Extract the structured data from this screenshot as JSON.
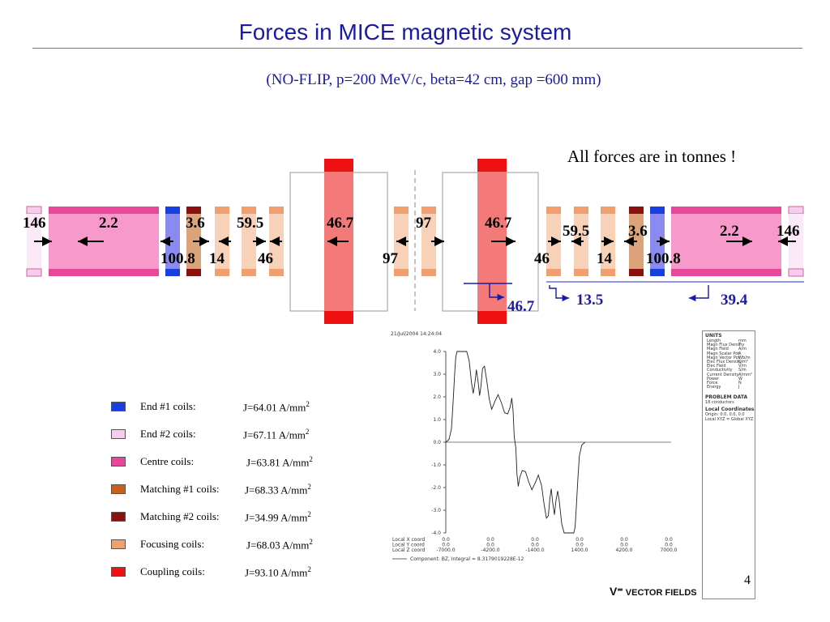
{
  "title": "Forces in MICE magnetic system",
  "subtitle": "(NO-FLIP, p=200 MeV/c, beta=42 cm, gap =600 mm)",
  "note": "All forces are in tonnes !",
  "colors": {
    "end1": "#1a3fe0",
    "end2": "#f6cdef",
    "centre": "#e8489a",
    "matching1": "#c8621a",
    "matching2": "#8b1010",
    "focusing": "#f0a070",
    "coupling": "#ee1111",
    "blue_text": "#1a1aa6"
  },
  "forces": {
    "f146_left": "146",
    "f2_2_left": "2.2",
    "f3_6_left": "3.6",
    "f59_5_left": "59.5",
    "f46_7_left": "46.7",
    "f97_top": "97",
    "f46_7_right": "46.7",
    "f59_5_right": "59.5",
    "f3_6_right": "3.6",
    "f2_2_right": "2.2",
    "f146_right": "146",
    "f100_8_left": "100.8",
    "f14_left": "14",
    "f46_left": "46",
    "f97_bottom": "97",
    "f46_right": "46",
    "f14_right": "14",
    "f100_8_right": "100.8",
    "net_46_7": "46.7",
    "net_13_5": "13.5",
    "net_39_4": "39.4"
  },
  "legend": [
    {
      "name": "End #1 coils:",
      "j": "J=64.01 A/mm",
      "sup": "2",
      "color_key": "end1"
    },
    {
      "name": "End #2 coils:",
      "j": "J=67.11 A/mm",
      "sup": "2",
      "color_key": "end2"
    },
    {
      "name": "Centre coils:",
      "j": "J=63.81 A/mm",
      "sup": "2",
      "color_key": "centre"
    },
    {
      "name": "Matching #1 coils:",
      "j": "J=68.33 A/mm",
      "sup": "2",
      "color_key": "matching1"
    },
    {
      "name": "Matching #2 coils:",
      "j": "J=34.99 A/mm",
      "sup": "2",
      "color_key": "matching2"
    },
    {
      "name": "Focusing coils:",
      "j": "J=68.03 A/mm",
      "sup": "2",
      "color_key": "focusing"
    },
    {
      "name": "Coupling coils:",
      "j": "J=93.10 A/mm",
      "sup": "2",
      "color_key": "coupling"
    }
  ],
  "plot": {
    "timestamp": "21/Jul/2004 14:24:04",
    "y_ticks": [
      "4.0",
      "3.0",
      "2.0",
      "1.0",
      "0.0",
      "-1.0",
      "-2.0",
      "-3.0",
      "-4.0"
    ],
    "x_rows": [
      {
        "label": "Local X coord",
        "values": [
          "0.0",
          "0.0",
          "0.0",
          "0.0",
          "0.0",
          "0.0"
        ]
      },
      {
        "label": "Local Y coord",
        "values": [
          "0.0",
          "0.0",
          "0.0",
          "0.0",
          "0.0",
          "0.0"
        ]
      },
      {
        "label": "Local Z coord",
        "values": [
          "-7000.0",
          "-4200.0",
          "-1400.0",
          "1400.0",
          "4200.0",
          "7000.0"
        ]
      }
    ],
    "component": "Component: BZ, Integral = 8.3179019228E-12",
    "units_title": "UNITS",
    "units": [
      [
        "Length",
        "mm"
      ],
      [
        "Magn Flux Density",
        "T"
      ],
      [
        "Magn Field",
        "A/m"
      ],
      [
        "Magn Scalar Pot",
        "A"
      ],
      [
        "Magn Vector Pot",
        "Wb/m"
      ],
      [
        "Elec Flux Density",
        "C/m²"
      ],
      [
        "Elec Field",
        "V/m"
      ],
      [
        "Conductivity",
        "S/m"
      ],
      [
        "Current Density",
        "A/mm²"
      ],
      [
        "Power",
        "W"
      ],
      [
        "Force",
        "N"
      ],
      [
        "Energy",
        "J"
      ]
    ],
    "problem_title": "PROBLEM DATA",
    "problem_text": "18 conductors",
    "local_title": "Local Coordinates",
    "local_lines": [
      "Origin: 0.0, 0.0, 0.0",
      "Local XYZ = Global XYZ"
    ],
    "field_curve": [
      [
        -7000,
        0
      ],
      [
        -6800,
        0.12
      ],
      [
        -6650,
        0.6
      ],
      [
        -6550,
        1.7
      ],
      [
        -6450,
        3.0
      ],
      [
        -6380,
        3.75
      ],
      [
        -6300,
        4.0
      ],
      [
        -5700,
        4.0
      ],
      [
        -5550,
        3.6
      ],
      [
        -5400,
        2.6
      ],
      [
        -5300,
        2.15
      ],
      [
        -5200,
        2.55
      ],
      [
        -5100,
        3.2
      ],
      [
        -4980,
        2.6
      ],
      [
        -4900,
        2.05
      ],
      [
        -4820,
        2.45
      ],
      [
        -4720,
        3.25
      ],
      [
        -4600,
        3.35
      ],
      [
        -4450,
        2.7
      ],
      [
        -4300,
        1.9
      ],
      [
        -4150,
        1.45
      ],
      [
        -3950,
        1.8
      ],
      [
        -3750,
        2.1
      ],
      [
        -3550,
        1.75
      ],
      [
        -3350,
        1.3
      ],
      [
        -3150,
        1.25
      ],
      [
        -3000,
        1.55
      ],
      [
        -2900,
        1.95
      ],
      [
        -2820,
        1.4
      ],
      [
        -2750,
        0.25
      ],
      [
        -2700,
        0.0
      ],
      [
        -2650,
        -0.25
      ],
      [
        -2580,
        -1.4
      ],
      [
        -2500,
        -1.95
      ],
      [
        -2400,
        -1.55
      ],
      [
        -2250,
        -1.25
      ],
      [
        -2050,
        -1.3
      ],
      [
        -1850,
        -1.75
      ],
      [
        -1650,
        -2.1
      ],
      [
        -1450,
        -1.8
      ],
      [
        -1250,
        -1.45
      ],
      [
        -1050,
        -1.9
      ],
      [
        -900,
        -2.7
      ],
      [
        -750,
        -3.35
      ],
      [
        -630,
        -3.25
      ],
      [
        -530,
        -2.45
      ],
      [
        -450,
        -2.05
      ],
      [
        -370,
        -2.6
      ],
      [
        -250,
        -3.2
      ],
      [
        -150,
        -2.55
      ],
      [
        -50,
        -2.15
      ],
      [
        50,
        -2.6
      ],
      [
        200,
        -3.6
      ],
      [
        350,
        -4.0
      ],
      [
        950,
        -4.0
      ],
      [
        1030,
        -3.75
      ],
      [
        1100,
        -3.0
      ],
      [
        1200,
        -1.7
      ],
      [
        1300,
        -0.6
      ],
      [
        1450,
        -0.12
      ],
      [
        1650,
        0
      ]
    ]
  },
  "slide_number": "4",
  "vendor": "VECTOR FIELDS"
}
